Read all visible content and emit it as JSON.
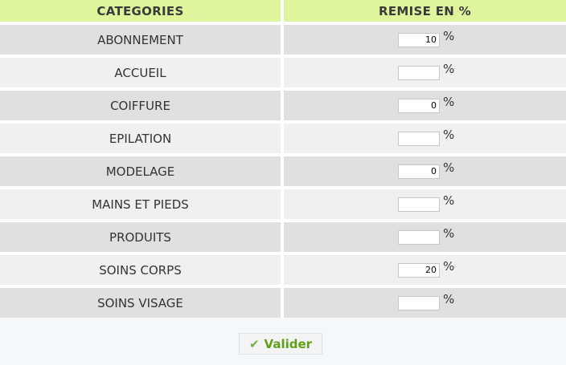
{
  "table": {
    "headers": [
      "CATEGORIES",
      "REMISE EN %"
    ],
    "percent_symbol": "%",
    "rows": [
      {
        "category": "ABONNEMENT",
        "value": "10"
      },
      {
        "category": "ACCUEIL",
        "value": ""
      },
      {
        "category": "COIFFURE",
        "value": "0"
      },
      {
        "category": "EPILATION",
        "value": ""
      },
      {
        "category": "MODELAGE",
        "value": "0"
      },
      {
        "category": "MAINS ET PIEDS",
        "value": ""
      },
      {
        "category": "PRODUITS",
        "value": ""
      },
      {
        "category": "SOINS CORPS",
        "value": "20"
      },
      {
        "category": "SOINS VISAGE",
        "value": ""
      }
    ]
  },
  "footer": {
    "submit_label": "Valider",
    "submit_icon": "check-icon"
  }
}
